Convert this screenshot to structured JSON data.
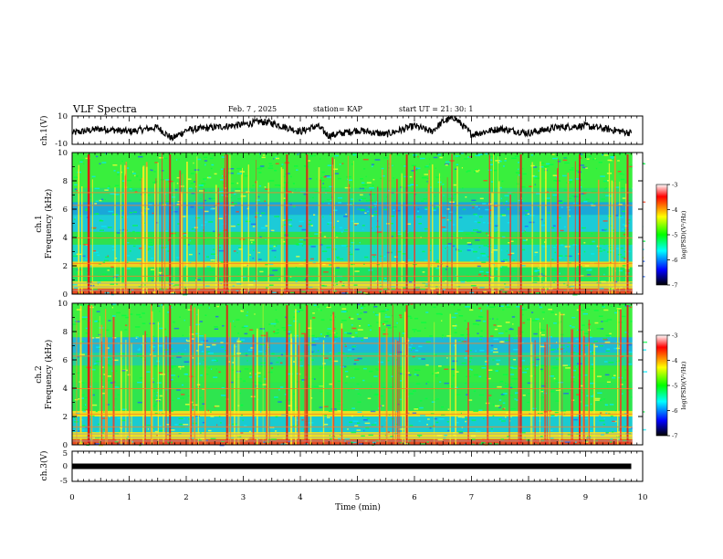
{
  "header": {
    "title": "VLF Spectra",
    "date": "Feb. 7 , 2025",
    "station": "station= KAP",
    "start_ut": "start  UT  =    21: 30: 1"
  },
  "panels": {
    "ch1_waveform": {
      "ylabel": "ch.1(V)",
      "yticks": [
        "10",
        "-10"
      ]
    },
    "ch1_spectrogram": {
      "ylabel_line1": "ch.1",
      "ylabel_line2": "Frequency  (kHz)",
      "yticks": [
        "0",
        "2",
        "4",
        "6",
        "8",
        "10"
      ]
    },
    "ch2_spectrogram": {
      "ylabel_line1": "ch.2",
      "ylabel_line2": "Frequency  (kHz)",
      "yticks": [
        "0",
        "2",
        "4",
        "6",
        "8",
        "10"
      ]
    },
    "ch3_waveform": {
      "ylabel": "ch.3(V)",
      "yticks": [
        "5",
        "0",
        "-5"
      ]
    }
  },
  "xaxis": {
    "label": "Time  (min)",
    "ticks": [
      "0",
      "1",
      "2",
      "3",
      "4",
      "5",
      "6",
      "7",
      "8",
      "9",
      "10"
    ]
  },
  "colorbar": {
    "label": "log(PSD)(V²/Hz)",
    "ticks": [
      "-3",
      "-4",
      "-5",
      "-6",
      "-7"
    ],
    "colors": [
      "#ffffff",
      "#ff0000",
      "#ffff00",
      "#00ff00",
      "#00ffff",
      "#0000ff",
      "#000000"
    ]
  },
  "chart_data": [
    {
      "type": "line",
      "name": "ch.1 waveform",
      "xlabel": "Time  (min)",
      "ylabel": "ch.1(V)",
      "xlim": [
        0,
        10
      ],
      "ylim": [
        -10,
        10
      ],
      "x": [
        0,
        0.5,
        1,
        1.5,
        1.75,
        2,
        2.5,
        3,
        3.3,
        3.5,
        4,
        4.3,
        4.5,
        5,
        5.5,
        6,
        6.3,
        6.5,
        6.7,
        7,
        7.5,
        8,
        8.5,
        9,
        9.5,
        9.8
      ],
      "values": [
        -2,
        1,
        -1,
        2,
        -6,
        0,
        2,
        4,
        6,
        5,
        -1,
        3,
        -4,
        0,
        -3,
        3,
        -1,
        6,
        9,
        -3,
        1,
        -2,
        2,
        3,
        0,
        -2
      ]
    },
    {
      "type": "heatmap",
      "name": "ch.1",
      "xlabel": "Time  (min)",
      "ylabel": "Frequency  (kHz)",
      "xlim": [
        0,
        10
      ],
      "ylim": [
        0,
        10
      ],
      "zlabel": "log(PSD)(V²/Hz)",
      "zlim": [
        -7,
        -3
      ]
    },
    {
      "type": "heatmap",
      "name": "ch.2",
      "xlabel": "Time  (min)",
      "ylabel": "Frequency  (kHz)",
      "xlim": [
        0,
        10
      ],
      "ylim": [
        0,
        10
      ],
      "zlabel": "log(PSD)(V²/Hz)",
      "zlim": [
        -7,
        -3
      ]
    },
    {
      "type": "line",
      "name": "ch.3 waveform",
      "xlabel": "Time  (min)",
      "ylabel": "ch.3(V)",
      "xlim": [
        0,
        10
      ],
      "ylim": [
        -5,
        5
      ],
      "x": [
        0,
        9.8
      ],
      "values": [
        0,
        0
      ]
    }
  ]
}
